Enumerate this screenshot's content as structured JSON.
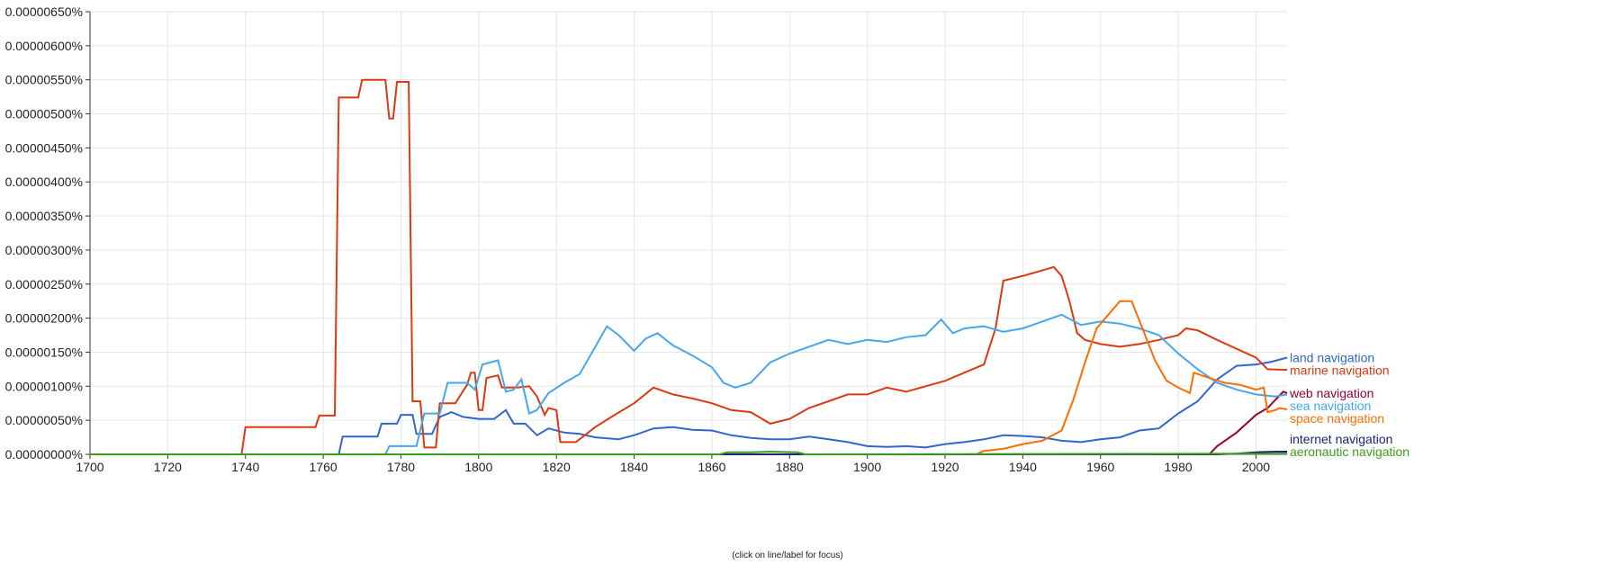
{
  "chart_data": {
    "type": "line",
    "title": "",
    "xlabel": "",
    "ylabel": "",
    "xlim": [
      1700,
      2008
    ],
    "ylim": [
      0,
      6.5e-06
    ],
    "y_ticks": [
      "0.00000000%",
      "0.00000050%",
      "0.00000100%",
      "0.00000150%",
      "0.00000200%",
      "0.00000250%",
      "0.00000300%",
      "0.00000350%",
      "0.00000400%",
      "0.00000450%",
      "0.00000500%",
      "0.00000550%",
      "0.00000600%",
      "0.00000650%"
    ],
    "x_ticks": [
      "1700",
      "1720",
      "1740",
      "1760",
      "1780",
      "1800",
      "1820",
      "1840",
      "1860",
      "1880",
      "1900",
      "1920",
      "1940",
      "1960",
      "1980",
      "2000"
    ],
    "grid": true,
    "legend": "right",
    "hint": "(click on line/label for focus)",
    "series": [
      {
        "name": "land navigation",
        "color": "#3366cc",
        "points": [
          [
            1700,
            0
          ],
          [
            1764,
            0
          ],
          [
            1765,
            2.6e-07
          ],
          [
            1774,
            2.6e-07
          ],
          [
            1775,
            4.5e-07
          ],
          [
            1779,
            4.5e-07
          ],
          [
            1780,
            5.8e-07
          ],
          [
            1783,
            5.8e-07
          ],
          [
            1784,
            3e-07
          ],
          [
            1788,
            3e-07
          ],
          [
            1790,
            5.5e-07
          ],
          [
            1793,
            6.2e-07
          ],
          [
            1796,
            5.5e-07
          ],
          [
            1800,
            5.2e-07
          ],
          [
            1804,
            5.2e-07
          ],
          [
            1807,
            6.5e-07
          ],
          [
            1809,
            4.5e-07
          ],
          [
            1812,
            4.5e-07
          ],
          [
            1815,
            2.8e-07
          ],
          [
            1818,
            3.8e-07
          ],
          [
            1822,
            3.2e-07
          ],
          [
            1826,
            3e-07
          ],
          [
            1830,
            2.5e-07
          ],
          [
            1836,
            2.2e-07
          ],
          [
            1840,
            2.8e-07
          ],
          [
            1845,
            3.8e-07
          ],
          [
            1850,
            4e-07
          ],
          [
            1855,
            3.6e-07
          ],
          [
            1860,
            3.5e-07
          ],
          [
            1865,
            2.8e-07
          ],
          [
            1870,
            2.4e-07
          ],
          [
            1875,
            2.2e-07
          ],
          [
            1880,
            2.2e-07
          ],
          [
            1885,
            2.6e-07
          ],
          [
            1890,
            2.2e-07
          ],
          [
            1895,
            1.8e-07
          ],
          [
            1900,
            1.2e-07
          ],
          [
            1905,
            1.1e-07
          ],
          [
            1910,
            1.2e-07
          ],
          [
            1915,
            1e-07
          ],
          [
            1920,
            1.5e-07
          ],
          [
            1925,
            1.8e-07
          ],
          [
            1930,
            2.2e-07
          ],
          [
            1935,
            2.8e-07
          ],
          [
            1940,
            2.7e-07
          ],
          [
            1945,
            2.5e-07
          ],
          [
            1950,
            2e-07
          ],
          [
            1955,
            1.8e-07
          ],
          [
            1960,
            2.2e-07
          ],
          [
            1965,
            2.5e-07
          ],
          [
            1970,
            3.5e-07
          ],
          [
            1975,
            3.8e-07
          ],
          [
            1980,
            6e-07
          ],
          [
            1985,
            7.8e-07
          ],
          [
            1990,
            1.1e-06
          ],
          [
            1995,
            1.3e-06
          ],
          [
            2000,
            1.32e-06
          ],
          [
            2004,
            1.36e-06
          ],
          [
            2008,
            1.42e-06
          ]
        ]
      },
      {
        "name": "marine navigation",
        "color": "#dc3912",
        "points": [
          [
            1700,
            0
          ],
          [
            1739,
            0
          ],
          [
            1740,
            4e-07
          ],
          [
            1758,
            4e-07
          ],
          [
            1759,
            5.7e-07
          ],
          [
            1763,
            5.7e-07
          ],
          [
            1764,
            5.24e-06
          ],
          [
            1769,
            5.24e-06
          ],
          [
            1770,
            5.5e-06
          ],
          [
            1776,
            5.5e-06
          ],
          [
            1777,
            4.93e-06
          ],
          [
            1778,
            4.93e-06
          ],
          [
            1779,
            5.47e-06
          ],
          [
            1782,
            5.47e-06
          ],
          [
            1783,
            7.8e-07
          ],
          [
            1785,
            7.8e-07
          ],
          [
            1786,
            1e-07
          ],
          [
            1789,
            1e-07
          ],
          [
            1790,
            7.5e-07
          ],
          [
            1794,
            7.5e-07
          ],
          [
            1797,
            1.02e-06
          ],
          [
            1798,
            1.2e-06
          ],
          [
            1799,
            1.2e-06
          ],
          [
            1800,
            6.5e-07
          ],
          [
            1801,
            6.5e-07
          ],
          [
            1802,
            1.12e-06
          ],
          [
            1805,
            1.16e-06
          ],
          [
            1806,
            9.8e-07
          ],
          [
            1810,
            9.8e-07
          ],
          [
            1813,
            1e-06
          ],
          [
            1815,
            8.5e-07
          ],
          [
            1817,
            5.8e-07
          ],
          [
            1818,
            6.8e-07
          ],
          [
            1820,
            6.5e-07
          ],
          [
            1821,
            1.8e-07
          ],
          [
            1825,
            1.8e-07
          ],
          [
            1830,
            4e-07
          ],
          [
            1835,
            5.8e-07
          ],
          [
            1840,
            7.5e-07
          ],
          [
            1845,
            9.8e-07
          ],
          [
            1850,
            8.8e-07
          ],
          [
            1855,
            8.2e-07
          ],
          [
            1860,
            7.5e-07
          ],
          [
            1865,
            6.5e-07
          ],
          [
            1870,
            6.2e-07
          ],
          [
            1875,
            4.5e-07
          ],
          [
            1880,
            5.2e-07
          ],
          [
            1885,
            6.8e-07
          ],
          [
            1890,
            7.8e-07
          ],
          [
            1895,
            8.8e-07
          ],
          [
            1900,
            8.8e-07
          ],
          [
            1905,
            9.8e-07
          ],
          [
            1910,
            9.2e-07
          ],
          [
            1915,
            1e-06
          ],
          [
            1920,
            1.08e-06
          ],
          [
            1925,
            1.2e-06
          ],
          [
            1930,
            1.32e-06
          ],
          [
            1933,
            1.85e-06
          ],
          [
            1935,
            2.55e-06
          ],
          [
            1940,
            2.62e-06
          ],
          [
            1945,
            2.7e-06
          ],
          [
            1948,
            2.75e-06
          ],
          [
            1950,
            2.62e-06
          ],
          [
            1952,
            2.25e-06
          ],
          [
            1954,
            1.78e-06
          ],
          [
            1956,
            1.68e-06
          ],
          [
            1960,
            1.62e-06
          ],
          [
            1965,
            1.58e-06
          ],
          [
            1970,
            1.62e-06
          ],
          [
            1975,
            1.68e-06
          ],
          [
            1980,
            1.75e-06
          ],
          [
            1982,
            1.85e-06
          ],
          [
            1985,
            1.82e-06
          ],
          [
            1990,
            1.68e-06
          ],
          [
            1995,
            1.55e-06
          ],
          [
            2000,
            1.42e-06
          ],
          [
            2003,
            1.25e-06
          ],
          [
            2008,
            1.24e-06
          ]
        ]
      },
      {
        "name": "web navigation",
        "color": "#990033",
        "points": [
          [
            1700,
            0
          ],
          [
            1988,
            0
          ],
          [
            1990,
            1.2e-07
          ],
          [
            1995,
            3.2e-07
          ],
          [
            2000,
            5.8e-07
          ],
          [
            2003,
            6.8e-07
          ],
          [
            2005,
            8e-07
          ],
          [
            2007,
            9.2e-07
          ],
          [
            2008,
            9e-07
          ]
        ]
      },
      {
        "name": "sea navigation",
        "color": "#46a6ee",
        "points": [
          [
            1700,
            0
          ],
          [
            1776,
            0
          ],
          [
            1777,
            1.2e-07
          ],
          [
            1784,
            1.2e-07
          ],
          [
            1786,
            6e-07
          ],
          [
            1790,
            6e-07
          ],
          [
            1792,
            1.05e-06
          ],
          [
            1797,
            1.05e-06
          ],
          [
            1799,
            9.5e-07
          ],
          [
            1801,
            1.32e-06
          ],
          [
            1805,
            1.38e-06
          ],
          [
            1807,
            9.2e-07
          ],
          [
            1809,
            9.5e-07
          ],
          [
            1811,
            1.1e-06
          ],
          [
            1813,
            6e-07
          ],
          [
            1815,
            6.5e-07
          ],
          [
            1818,
            9e-07
          ],
          [
            1822,
            1.05e-06
          ],
          [
            1826,
            1.18e-06
          ],
          [
            1830,
            1.58e-06
          ],
          [
            1833,
            1.88e-06
          ],
          [
            1836,
            1.75e-06
          ],
          [
            1840,
            1.52e-06
          ],
          [
            1843,
            1.7e-06
          ],
          [
            1846,
            1.78e-06
          ],
          [
            1850,
            1.6e-06
          ],
          [
            1855,
            1.45e-06
          ],
          [
            1860,
            1.28e-06
          ],
          [
            1863,
            1.05e-06
          ],
          [
            1866,
            9.8e-07
          ],
          [
            1870,
            1.05e-06
          ],
          [
            1875,
            1.35e-06
          ],
          [
            1880,
            1.48e-06
          ],
          [
            1885,
            1.58e-06
          ],
          [
            1890,
            1.68e-06
          ],
          [
            1895,
            1.62e-06
          ],
          [
            1900,
            1.68e-06
          ],
          [
            1905,
            1.65e-06
          ],
          [
            1910,
            1.72e-06
          ],
          [
            1915,
            1.75e-06
          ],
          [
            1919,
            1.98e-06
          ],
          [
            1922,
            1.78e-06
          ],
          [
            1925,
            1.85e-06
          ],
          [
            1930,
            1.88e-06
          ],
          [
            1935,
            1.8e-06
          ],
          [
            1940,
            1.85e-06
          ],
          [
            1945,
            1.95e-06
          ],
          [
            1950,
            2.05e-06
          ],
          [
            1955,
            1.9e-06
          ],
          [
            1960,
            1.95e-06
          ],
          [
            1965,
            1.92e-06
          ],
          [
            1970,
            1.85e-06
          ],
          [
            1975,
            1.75e-06
          ],
          [
            1980,
            1.48e-06
          ],
          [
            1985,
            1.25e-06
          ],
          [
            1990,
            1.05e-06
          ],
          [
            1995,
            9.5e-07
          ],
          [
            2000,
            8.8e-07
          ],
          [
            2005,
            8.5e-07
          ],
          [
            2008,
            8.8e-07
          ]
        ]
      },
      {
        "name": "space navigation",
        "color": "#ff6d00",
        "points": [
          [
            1700,
            0
          ],
          [
            1928,
            0
          ],
          [
            1930,
            5e-08
          ],
          [
            1935,
            8e-08
          ],
          [
            1940,
            1.5e-07
          ],
          [
            1945,
            2e-07
          ],
          [
            1950,
            3.5e-07
          ],
          [
            1953,
            8e-07
          ],
          [
            1956,
            1.35e-06
          ],
          [
            1959,
            1.85e-06
          ],
          [
            1962,
            2.05e-06
          ],
          [
            1965,
            2.25e-06
          ],
          [
            1968,
            2.25e-06
          ],
          [
            1971,
            1.82e-06
          ],
          [
            1974,
            1.38e-06
          ],
          [
            1977,
            1.08e-06
          ],
          [
            1980,
            9.8e-07
          ],
          [
            1983,
            9e-07
          ],
          [
            1984,
            1.2e-06
          ],
          [
            1988,
            1.12e-06
          ],
          [
            1992,
            1.05e-06
          ],
          [
            1996,
            1.02e-06
          ],
          [
            2000,
            9.5e-07
          ],
          [
            2002,
            9.8e-07
          ],
          [
            2003,
            6.2e-07
          ],
          [
            2005,
            6.5e-07
          ],
          [
            2006,
            6.8e-07
          ],
          [
            2008,
            6.6e-07
          ]
        ]
      },
      {
        "name": "internet navigation",
        "color": "#1a237e",
        "points": [
          [
            1700,
            0
          ],
          [
            1990,
            0
          ],
          [
            1995,
            1e-08
          ],
          [
            2000,
            3e-08
          ],
          [
            2005,
            4e-08
          ],
          [
            2008,
            4e-08
          ]
        ]
      },
      {
        "name": "aeronautic navigation",
        "color": "#3d9c1c",
        "points": [
          [
            1700,
            0
          ],
          [
            1862,
            0
          ],
          [
            1864,
            3e-08
          ],
          [
            1870,
            3e-08
          ],
          [
            1875,
            4e-08
          ],
          [
            1882,
            3e-08
          ],
          [
            1884,
            0
          ],
          [
            2008,
            1e-08
          ]
        ]
      }
    ]
  }
}
